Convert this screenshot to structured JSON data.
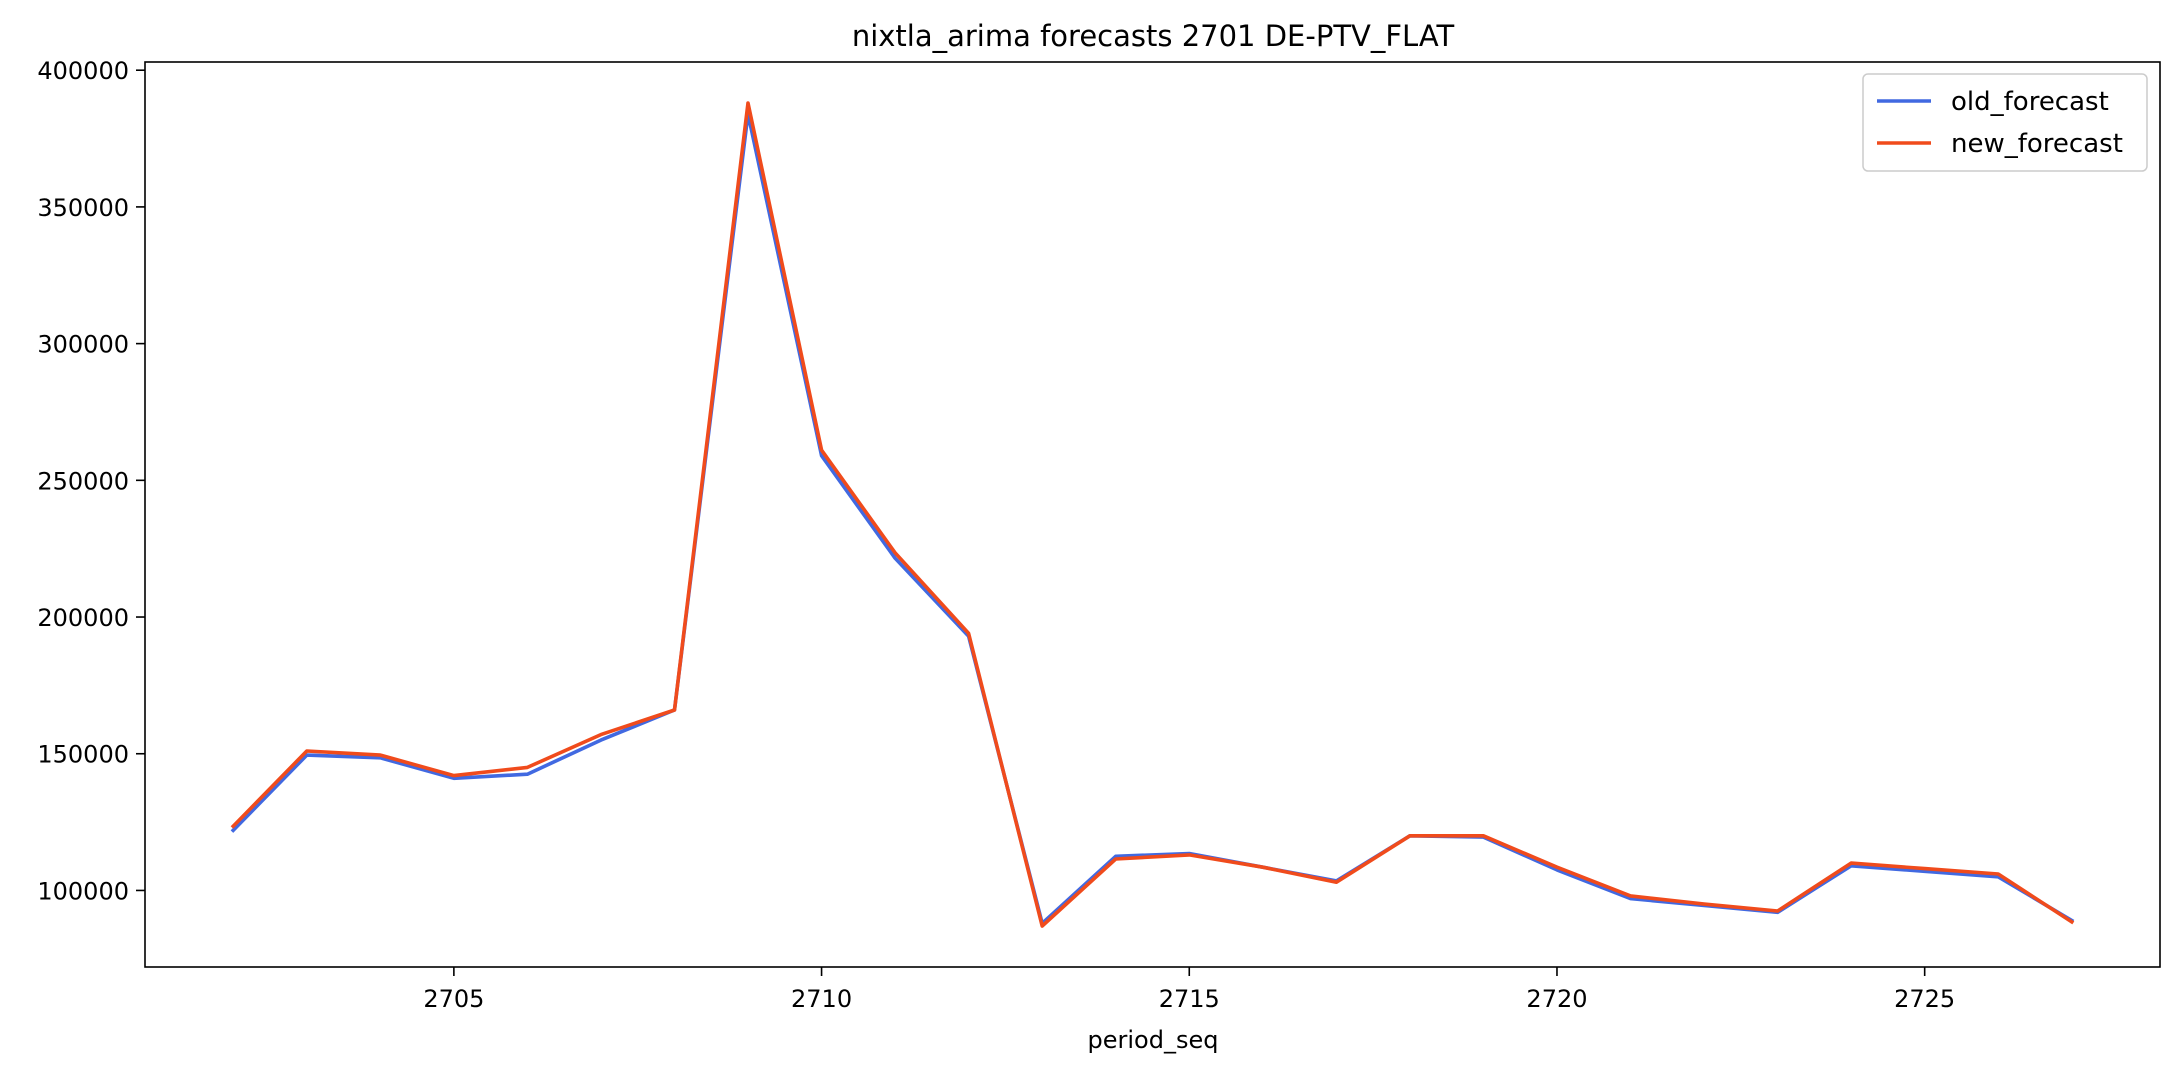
{
  "chart_data": {
    "type": "line",
    "title": "nixtla_arima forecasts 2701 DE-PTV_FLAT",
    "xlabel": "period_seq",
    "ylabel": "",
    "xlim": [
      2700.8,
      2728.2
    ],
    "ylim": [
      72000,
      403000
    ],
    "xticks": [
      2705,
      2710,
      2715,
      2720,
      2725
    ],
    "yticks": [
      100000,
      150000,
      200000,
      250000,
      300000,
      350000,
      400000
    ],
    "grid": false,
    "legend_position": "top-right",
    "x": [
      2702,
      2703,
      2704,
      2705,
      2706,
      2707,
      2708,
      2709,
      2710,
      2711,
      2712,
      2713,
      2714,
      2715,
      2716,
      2717,
      2718,
      2719,
      2720,
      2721,
      2722,
      2723,
      2724,
      2725,
      2726,
      2727
    ],
    "series": [
      {
        "name": "old_forecast",
        "color": "#4169e1",
        "values": [
          122000,
          149500,
          148500,
          141000,
          142500,
          155000,
          166000,
          384000,
          259000,
          221500,
          193000,
          88000,
          112500,
          113500,
          108500,
          103500,
          120000,
          119500,
          107500,
          97000,
          94500,
          92000,
          109000,
          107000,
          105000,
          89000
        ]
      },
      {
        "name": "new_forecast",
        "color": "#f04b1c",
        "values": [
          123500,
          151000,
          149500,
          142000,
          145000,
          157000,
          166000,
          388000,
          261000,
          223500,
          194000,
          87000,
          111500,
          113000,
          108500,
          103000,
          120000,
          120000,
          108500,
          98000,
          95000,
          92500,
          110000,
          108000,
          106000,
          88500
        ]
      }
    ]
  }
}
